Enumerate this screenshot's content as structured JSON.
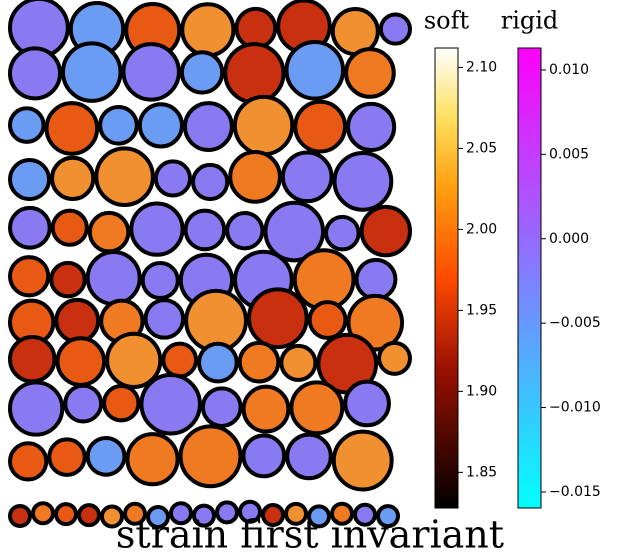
{
  "colorbars": [
    {
      "label": "soft",
      "lim": [
        1.828,
        2.112
      ],
      "colormap": "afmhot",
      "ticks": [
        {
          "value": 2.1,
          "label": "2.10"
        },
        {
          "value": 2.05,
          "label": "2.05"
        },
        {
          "value": 2.0,
          "label": "2.00"
        },
        {
          "value": 1.95,
          "label": "1.95"
        },
        {
          "value": 1.9,
          "label": "1.90"
        },
        {
          "value": 1.85,
          "label": "1.85"
        }
      ]
    },
    {
      "label": "rigid",
      "lim": [
        -0.01595,
        0.0113
      ],
      "colormap": "cool",
      "ticks": [
        {
          "value": 0.01,
          "label": "0.010"
        },
        {
          "value": 0.005,
          "label": "0.005"
        },
        {
          "value": 0.0,
          "label": "0.000"
        },
        {
          "value": -0.005,
          "label": "−0.005"
        },
        {
          "value": -0.01,
          "label": "−0.010"
        },
        {
          "value": -0.015,
          "label": "−0.015"
        }
      ]
    }
  ],
  "caption": "strain first invariant"
}
